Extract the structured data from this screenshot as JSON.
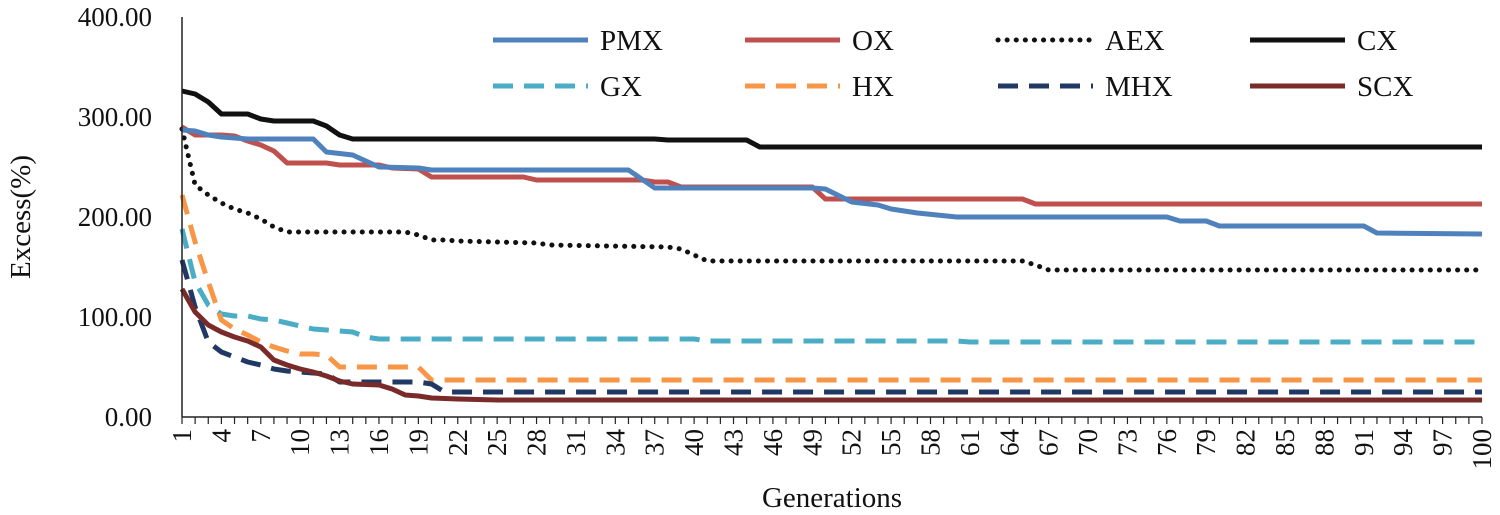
{
  "chart_data": {
    "type": "line",
    "xlabel": "Generations",
    "ylabel": "Excess(%)",
    "xlim": [
      1,
      100
    ],
    "ylim": [
      0,
      400
    ],
    "y_ticks": [
      "0.00",
      "100.00",
      "200.00",
      "300.00",
      "400.00"
    ],
    "x_ticks": [
      1,
      4,
      7,
      10,
      13,
      16,
      19,
      22,
      25,
      28,
      31,
      34,
      37,
      40,
      43,
      46,
      49,
      52,
      55,
      58,
      61,
      64,
      67,
      70,
      73,
      76,
      79,
      82,
      85,
      88,
      91,
      94,
      97,
      100
    ],
    "grid": false,
    "legend_position": "top-right",
    "series": [
      {
        "name": "PMX",
        "color": "#4f81bd",
        "style": "solid",
        "points": [
          [
            1,
            287
          ],
          [
            2,
            286
          ],
          [
            3,
            282
          ],
          [
            4,
            280
          ],
          [
            5,
            279
          ],
          [
            6,
            278
          ],
          [
            11,
            278
          ],
          [
            12,
            265
          ],
          [
            14,
            262
          ],
          [
            15,
            256
          ],
          [
            16,
            250
          ],
          [
            19,
            249
          ],
          [
            20,
            247
          ],
          [
            35,
            247
          ],
          [
            36,
            238
          ],
          [
            37,
            229
          ],
          [
            49,
            229
          ],
          [
            50,
            228
          ],
          [
            52,
            215
          ],
          [
            54,
            212
          ],
          [
            55,
            208
          ],
          [
            57,
            204
          ],
          [
            60,
            200
          ],
          [
            76,
            200
          ],
          [
            77,
            196
          ],
          [
            79,
            196
          ],
          [
            80,
            191
          ],
          [
            91,
            191
          ],
          [
            92,
            184
          ],
          [
            100,
            183
          ]
        ]
      },
      {
        "name": "OX",
        "color": "#c0504d",
        "style": "solid",
        "points": [
          [
            1,
            290
          ],
          [
            2,
            282
          ],
          [
            4,
            282
          ],
          [
            5,
            281
          ],
          [
            6,
            276
          ],
          [
            7,
            272
          ],
          [
            8,
            266
          ],
          [
            9,
            254
          ],
          [
            12,
            254
          ],
          [
            13,
            252
          ],
          [
            16,
            252
          ],
          [
            17,
            249
          ],
          [
            19,
            248
          ],
          [
            20,
            240
          ],
          [
            27,
            240
          ],
          [
            28,
            237
          ],
          [
            36,
            237
          ],
          [
            37,
            235
          ],
          [
            38,
            235
          ],
          [
            39,
            230
          ],
          [
            49,
            230
          ],
          [
            50,
            218
          ],
          [
            65,
            218
          ],
          [
            66,
            213
          ],
          [
            100,
            213
          ]
        ]
      },
      {
        "name": "AEX",
        "color": "#111111",
        "style": "dotted",
        "points": [
          [
            1,
            288
          ],
          [
            2,
            232
          ],
          [
            3,
            222
          ],
          [
            4,
            214
          ],
          [
            5,
            208
          ],
          [
            6,
            204
          ],
          [
            7,
            198
          ],
          [
            8,
            190
          ],
          [
            9,
            185
          ],
          [
            18,
            185
          ],
          [
            19,
            182
          ],
          [
            20,
            177
          ],
          [
            21,
            177
          ],
          [
            22,
            176
          ],
          [
            28,
            174
          ],
          [
            29,
            172
          ],
          [
            38,
            170
          ],
          [
            39,
            168
          ],
          [
            40,
            162
          ],
          [
            41,
            156
          ],
          [
            65,
            156
          ],
          [
            66,
            152
          ],
          [
            67,
            147
          ],
          [
            100,
            147
          ]
        ]
      },
      {
        "name": "CX",
        "color": "#111111",
        "style": "solid",
        "points": [
          [
            1,
            326
          ],
          [
            2,
            323
          ],
          [
            3,
            315
          ],
          [
            4,
            303
          ],
          [
            6,
            303
          ],
          [
            7,
            298
          ],
          [
            8,
            296
          ],
          [
            11,
            296
          ],
          [
            12,
            291
          ],
          [
            13,
            282
          ],
          [
            14,
            278
          ],
          [
            37,
            278
          ],
          [
            38,
            277
          ],
          [
            44,
            277
          ],
          [
            45,
            270
          ],
          [
            100,
            270
          ]
        ]
      },
      {
        "name": "GX",
        "color": "#4bacc6",
        "style": "dashed",
        "points": [
          [
            1,
            188
          ],
          [
            2,
            135
          ],
          [
            3,
            112
          ],
          [
            4,
            103
          ],
          [
            5,
            101
          ],
          [
            6,
            101
          ],
          [
            7,
            98
          ],
          [
            8,
            97
          ],
          [
            9,
            94
          ],
          [
            10,
            91
          ],
          [
            11,
            88
          ],
          [
            12,
            87
          ],
          [
            13,
            86
          ],
          [
            14,
            85
          ],
          [
            15,
            80
          ],
          [
            16,
            78
          ],
          [
            20,
            78
          ],
          [
            40,
            78
          ],
          [
            41,
            76
          ],
          [
            60,
            76
          ],
          [
            61,
            75
          ],
          [
            100,
            75
          ]
        ]
      },
      {
        "name": "HX",
        "color": "#f79646",
        "style": "dashed",
        "points": [
          [
            1,
            222
          ],
          [
            2,
            175
          ],
          [
            3,
            135
          ],
          [
            4,
            97
          ],
          [
            5,
            88
          ],
          [
            6,
            82
          ],
          [
            7,
            75
          ],
          [
            8,
            70
          ],
          [
            9,
            66
          ],
          [
            10,
            63
          ],
          [
            11,
            63
          ],
          [
            12,
            62
          ],
          [
            13,
            50
          ],
          [
            19,
            50
          ],
          [
            20,
            37
          ],
          [
            100,
            37
          ]
        ]
      },
      {
        "name": "MHX",
        "color": "#1f3864",
        "style": "dashed",
        "points": [
          [
            1,
            157
          ],
          [
            2,
            110
          ],
          [
            3,
            75
          ],
          [
            4,
            65
          ],
          [
            5,
            60
          ],
          [
            6,
            55
          ],
          [
            7,
            52
          ],
          [
            8,
            48
          ],
          [
            9,
            46
          ],
          [
            11,
            44
          ],
          [
            12,
            43
          ],
          [
            13,
            35
          ],
          [
            19,
            35
          ],
          [
            20,
            33
          ],
          [
            21,
            25
          ],
          [
            100,
            25
          ]
        ]
      },
      {
        "name": "SCX",
        "color": "#7b2a2a",
        "style": "solid",
        "points": [
          [
            1,
            128
          ],
          [
            2,
            105
          ],
          [
            3,
            92
          ],
          [
            4,
            85
          ],
          [
            5,
            80
          ],
          [
            6,
            76
          ],
          [
            7,
            70
          ],
          [
            8,
            57
          ],
          [
            9,
            52
          ],
          [
            10,
            48
          ],
          [
            11,
            45
          ],
          [
            12,
            41
          ],
          [
            13,
            36
          ],
          [
            14,
            33
          ],
          [
            16,
            32
          ],
          [
            17,
            28
          ],
          [
            18,
            22
          ],
          [
            19,
            21
          ],
          [
            20,
            19
          ],
          [
            22,
            18
          ],
          [
            25,
            17
          ],
          [
            100,
            17
          ]
        ]
      }
    ]
  }
}
